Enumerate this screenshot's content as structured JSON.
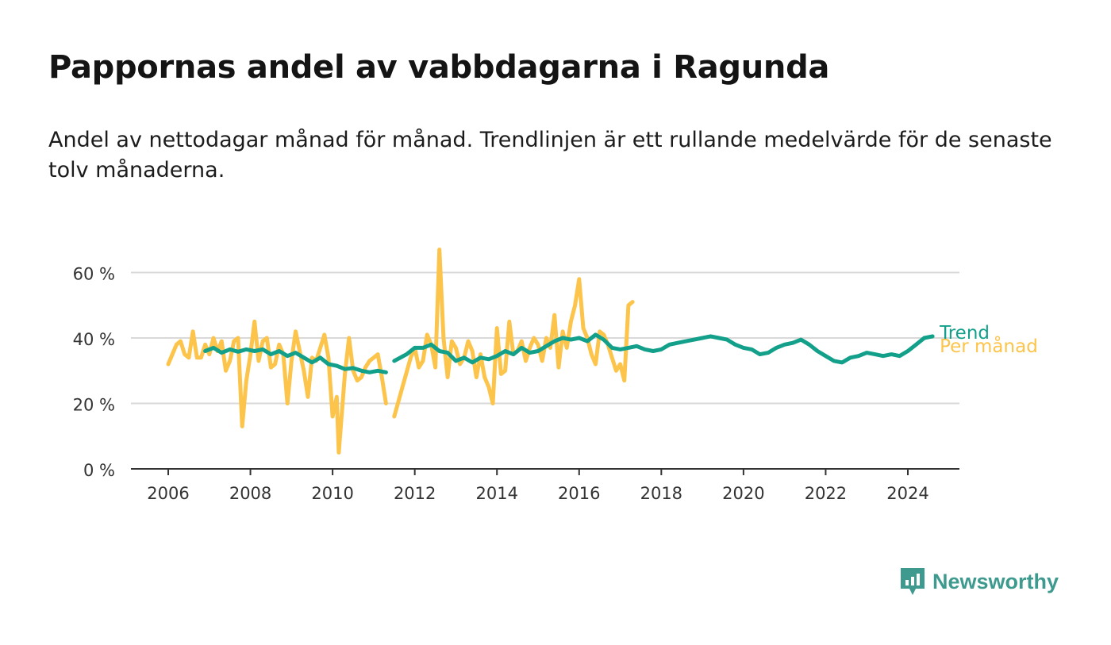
{
  "title": "Pappornas andel av vabbdagarna i Ragunda",
  "subtitle": "Andel av nettodagar månad för månad. Trendlinjen är ett rullande medelvärde för de senaste tolv månaderna.",
  "brand": {
    "name": "Newsworthy",
    "color": "#3e9a8e"
  },
  "colors": {
    "monthly": "#fcc44a",
    "trend": "#13a08b",
    "grid": "#d9d9d9",
    "axis": "#333333"
  },
  "chart_data": {
    "type": "line",
    "title": "Pappornas andel av vabbdagarna i Ragunda",
    "xlabel": "",
    "ylabel": "",
    "xlim": [
      2006,
      2024.9
    ],
    "ylim": [
      0,
      60
    ],
    "x_ticks": [
      2006,
      2008,
      2010,
      2012,
      2014,
      2016,
      2018,
      2020,
      2022,
      2024
    ],
    "x_tick_labels": [
      "2006",
      "2008",
      "2010",
      "2012",
      "2014",
      "2016",
      "2018",
      "2020",
      "2022",
      "2024"
    ],
    "y_ticks": [
      0,
      20,
      40,
      60
    ],
    "y_tick_labels": [
      "0 %",
      "20 %",
      "40 %",
      "60 %"
    ],
    "grid": true,
    "series": [
      {
        "name": "Per månad",
        "label": "Per månad",
        "segments": [
          [
            [
              2006.0,
              32
            ],
            [
              2006.1,
              35
            ],
            [
              2006.2,
              38
            ],
            [
              2006.3,
              39
            ],
            [
              2006.4,
              35
            ],
            [
              2006.5,
              34
            ],
            [
              2006.6,
              42
            ],
            [
              2006.7,
              34
            ],
            [
              2006.8,
              34
            ],
            [
              2006.9,
              38
            ],
            [
              2007.0,
              35
            ],
            [
              2007.1,
              40
            ],
            [
              2007.2,
              36
            ],
            [
              2007.3,
              39
            ],
            [
              2007.4,
              30
            ],
            [
              2007.5,
              33
            ],
            [
              2007.6,
              39
            ],
            [
              2007.7,
              40
            ],
            [
              2007.8,
              13
            ],
            [
              2007.9,
              27
            ],
            [
              2008.0,
              35
            ],
            [
              2008.1,
              45
            ],
            [
              2008.2,
              33
            ],
            [
              2008.3,
              39
            ],
            [
              2008.4,
              40
            ],
            [
              2008.5,
              31
            ],
            [
              2008.6,
              32
            ],
            [
              2008.7,
              38
            ],
            [
              2008.8,
              35
            ],
            [
              2008.9,
              20
            ],
            [
              2009.0,
              33
            ],
            [
              2009.1,
              42
            ],
            [
              2009.2,
              36
            ],
            [
              2009.3,
              30
            ],
            [
              2009.4,
              22
            ],
            [
              2009.5,
              34
            ],
            [
              2009.6,
              33
            ],
            [
              2009.7,
              37
            ],
            [
              2009.8,
              41
            ],
            [
              2009.9,
              34
            ],
            [
              2010.0,
              16
            ],
            [
              2010.1,
              22
            ],
            [
              2010.15,
              5
            ],
            [
              2010.3,
              29
            ],
            [
              2010.4,
              40
            ],
            [
              2010.5,
              30
            ],
            [
              2010.6,
              27
            ],
            [
              2010.7,
              28
            ],
            [
              2010.8,
              31
            ],
            [
              2010.9,
              33
            ],
            [
              2011.0,
              34
            ],
            [
              2011.1,
              35
            ],
            [
              2011.2,
              28
            ],
            [
              2011.3,
              20
            ]
          ],
          [
            [
              2011.5,
              16
            ],
            [
              2011.7,
              25
            ],
            [
              2011.9,
              34
            ],
            [
              2012.0,
              37
            ],
            [
              2012.1,
              31
            ],
            [
              2012.2,
              33
            ],
            [
              2012.3,
              41
            ],
            [
              2012.4,
              38
            ],
            [
              2012.5,
              31
            ],
            [
              2012.6,
              67
            ],
            [
              2012.7,
              40
            ],
            [
              2012.8,
              28
            ],
            [
              2012.9,
              39
            ],
            [
              2013.0,
              37
            ],
            [
              2013.1,
              32
            ],
            [
              2013.2,
              34
            ],
            [
              2013.3,
              39
            ],
            [
              2013.4,
              36
            ],
            [
              2013.5,
              28
            ],
            [
              2013.6,
              35
            ],
            [
              2013.7,
              28
            ],
            [
              2013.8,
              25
            ],
            [
              2013.9,
              20
            ],
            [
              2014.0,
              43
            ],
            [
              2014.1,
              29
            ],
            [
              2014.2,
              30
            ],
            [
              2014.3,
              45
            ],
            [
              2014.4,
              35
            ],
            [
              2014.5,
              36
            ],
            [
              2014.6,
              39
            ],
            [
              2014.7,
              33
            ],
            [
              2014.8,
              37
            ],
            [
              2014.9,
              40
            ],
            [
              2015.0,
              38
            ],
            [
              2015.1,
              33
            ],
            [
              2015.2,
              40
            ],
            [
              2015.3,
              37
            ],
            [
              2015.4,
              47
            ],
            [
              2015.5,
              31
            ],
            [
              2015.6,
              42
            ],
            [
              2015.7,
              37
            ],
            [
              2015.8,
              45
            ],
            [
              2015.9,
              50
            ],
            [
              2016.0,
              58
            ],
            [
              2016.1,
              43
            ],
            [
              2016.2,
              40
            ],
            [
              2016.3,
              35
            ],
            [
              2016.4,
              32
            ],
            [
              2016.5,
              42
            ],
            [
              2016.6,
              41
            ],
            [
              2016.7,
              38
            ],
            [
              2016.8,
              34
            ],
            [
              2016.9,
              30
            ],
            [
              2017.0,
              32
            ],
            [
              2017.1,
              27
            ],
            [
              2017.2,
              50
            ],
            [
              2017.3,
              51
            ]
          ]
        ]
      },
      {
        "name": "Trend",
        "label": "Trend",
        "segments": [
          [
            [
              2006.9,
              36
            ],
            [
              2007.1,
              37
            ],
            [
              2007.3,
              35.5
            ],
            [
              2007.5,
              36.5
            ],
            [
              2007.7,
              35.8
            ],
            [
              2007.9,
              36.5
            ],
            [
              2008.1,
              36
            ],
            [
              2008.3,
              36.5
            ],
            [
              2008.5,
              35
            ],
            [
              2008.7,
              36
            ],
            [
              2008.9,
              34.5
            ],
            [
              2009.1,
              35.5
            ],
            [
              2009.3,
              34
            ],
            [
              2009.5,
              32.5
            ],
            [
              2009.7,
              34
            ],
            [
              2009.9,
              32
            ],
            [
              2010.1,
              31.5
            ],
            [
              2010.3,
              30.5
            ],
            [
              2010.5,
              30.8
            ],
            [
              2010.7,
              30
            ],
            [
              2010.9,
              29.5
            ],
            [
              2011.1,
              30
            ],
            [
              2011.3,
              29.5
            ]
          ],
          [
            [
              2011.5,
              33
            ],
            [
              2011.8,
              35
            ],
            [
              2012.0,
              37
            ],
            [
              2012.2,
              37
            ],
            [
              2012.4,
              38
            ],
            [
              2012.6,
              36
            ],
            [
              2012.8,
              35.5
            ],
            [
              2013.0,
              33
            ],
            [
              2013.2,
              34
            ],
            [
              2013.4,
              32.5
            ],
            [
              2013.6,
              34
            ],
            [
              2013.8,
              33.5
            ],
            [
              2014.0,
              34.5
            ],
            [
              2014.2,
              36
            ],
            [
              2014.4,
              35
            ],
            [
              2014.6,
              37
            ],
            [
              2014.8,
              35.5
            ],
            [
              2015.0,
              36
            ],
            [
              2015.2,
              37.5
            ],
            [
              2015.4,
              39
            ],
            [
              2015.6,
              40
            ],
            [
              2015.8,
              39.5
            ],
            [
              2016.0,
              40
            ],
            [
              2016.2,
              39
            ],
            [
              2016.4,
              41
            ],
            [
              2016.6,
              39.5
            ],
            [
              2016.8,
              37
            ],
            [
              2017.0,
              36.5
            ],
            [
              2017.2,
              37
            ],
            [
              2017.4,
              37.5
            ],
            [
              2017.6,
              36.5
            ],
            [
              2017.8,
              36
            ],
            [
              2018.0,
              36.5
            ],
            [
              2018.2,
              38
            ],
            [
              2018.4,
              38.5
            ],
            [
              2018.6,
              39
            ],
            [
              2018.8,
              39.5
            ],
            [
              2019.0,
              40
            ],
            [
              2019.2,
              40.5
            ],
            [
              2019.4,
              40
            ],
            [
              2019.6,
              39.5
            ],
            [
              2019.8,
              38
            ],
            [
              2020.0,
              37
            ],
            [
              2020.2,
              36.5
            ],
            [
              2020.4,
              35
            ],
            [
              2020.6,
              35.5
            ],
            [
              2020.8,
              37
            ],
            [
              2021.0,
              38
            ],
            [
              2021.2,
              38.5
            ],
            [
              2021.4,
              39.5
            ],
            [
              2021.6,
              38
            ],
            [
              2021.8,
              36
            ],
            [
              2022.0,
              34.5
            ],
            [
              2022.2,
              33
            ],
            [
              2022.4,
              32.5
            ],
            [
              2022.6,
              34
            ],
            [
              2022.8,
              34.5
            ],
            [
              2023.0,
              35.5
            ],
            [
              2023.2,
              35
            ],
            [
              2023.4,
              34.5
            ],
            [
              2023.6,
              35
            ],
            [
              2023.8,
              34.5
            ],
            [
              2024.0,
              36
            ],
            [
              2024.2,
              38
            ],
            [
              2024.4,
              40
            ],
            [
              2024.6,
              40.5
            ]
          ]
        ]
      }
    ],
    "legend": "end-of-line labels at right"
  }
}
